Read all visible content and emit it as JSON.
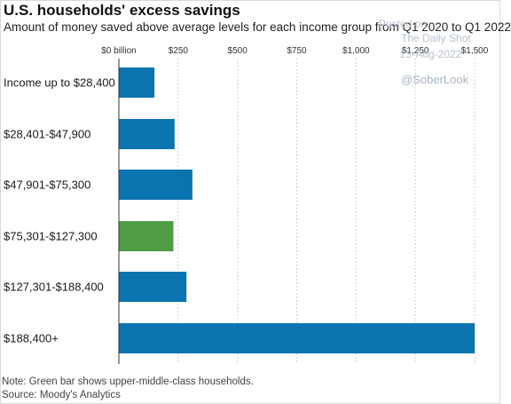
{
  "chart_data": {
    "type": "bar",
    "orientation": "horizontal",
    "title": "U.S. households' excess savings",
    "subtitle": "Amount of money saved above average levels for each income group from Q1 2020 to Q1 2022",
    "categories": [
      "Income up to $28,400",
      "$28,401-$47,900",
      "$47,901-$75,300",
      "$75,301-$127,300",
      "$127,301-$188,400",
      "$188,400+"
    ],
    "values": [
      150,
      235,
      310,
      230,
      285,
      1500
    ],
    "unit": "billion",
    "xlim": [
      0,
      1500
    ],
    "xticks": [
      0,
      250,
      500,
      750,
      1000,
      1250,
      1500
    ],
    "xtick_labels": [
      "$0 billion",
      "$250",
      "$500",
      "$750",
      "$1,000",
      "$1,250",
      "$1,500"
    ],
    "grid": true,
    "highlight_index": 3,
    "colors": {
      "bar": "#0a74b0",
      "highlight": "#4e9d45",
      "grid": "#c4c4c4",
      "axis": "#333333"
    }
  },
  "notes": {
    "note": "Note: Green bar shows upper-middle-class households.",
    "source": "Source: Moody's Analytics"
  },
  "watermark": {
    "posted": "Posted on",
    "brand": "The Daily Shot",
    "date": "23-Aug-2022",
    "handle": "@SoberLook"
  }
}
